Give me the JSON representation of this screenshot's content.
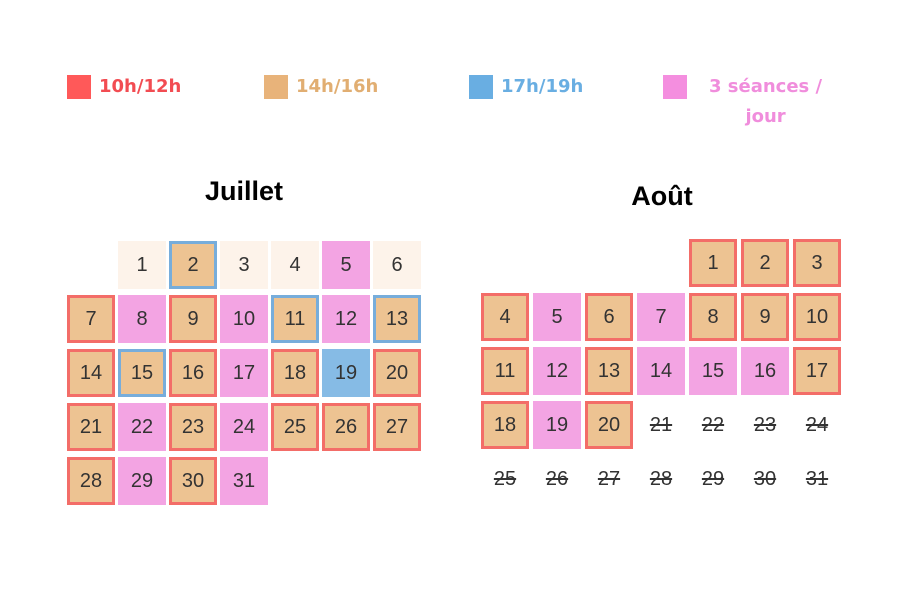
{
  "colors": {
    "red": "#FF5959",
    "tan": "#E8B37A",
    "blue": "#69AEE2",
    "pink": "#F48EDF",
    "cream": "#FDF3EA",
    "cell_tan": "#EDC392",
    "cell_pink": "#F3A4E3",
    "cell_blue": "#86BBE5",
    "border_red": "#F36D68",
    "border_blue": "#77ADDB"
  },
  "legend": [
    {
      "label": "10h/12h",
      "color": "#FF5959",
      "text_color": "#F24C52"
    },
    {
      "label": "14h/16h",
      "color": "#E8B37A",
      "text_color": "#E1AE72"
    },
    {
      "label": "17h/19h",
      "color": "#69AEE2",
      "text_color": "#69AEE2"
    },
    {
      "label": "3 séances /",
      "label2": "jour",
      "color": "#F48EDF",
      "text_color": "#F08DDC"
    }
  ],
  "months": [
    {
      "title": "Juillet",
      "days": [
        {
          "d": "1",
          "fill": "cream",
          "border": "none"
        },
        {
          "d": "2",
          "fill": "tan",
          "border": "blue"
        },
        {
          "d": "3",
          "fill": "cream",
          "border": "none"
        },
        {
          "d": "4",
          "fill": "cream",
          "border": "none"
        },
        {
          "d": "5",
          "fill": "pink",
          "border": "none"
        },
        {
          "d": "6",
          "fill": "cream",
          "border": "none"
        },
        {
          "d": "7",
          "fill": "tan",
          "border": "red"
        },
        {
          "d": "8",
          "fill": "pink",
          "border": "none"
        },
        {
          "d": "9",
          "fill": "tan",
          "border": "red"
        },
        {
          "d": "10",
          "fill": "pink",
          "border": "none"
        },
        {
          "d": "11",
          "fill": "tan",
          "border": "blue"
        },
        {
          "d": "12",
          "fill": "pink",
          "border": "none"
        },
        {
          "d": "13",
          "fill": "tan",
          "border": "blue"
        },
        {
          "d": "14",
          "fill": "tan",
          "border": "red"
        },
        {
          "d": "15",
          "fill": "tan",
          "border": "blue"
        },
        {
          "d": "16",
          "fill": "tan",
          "border": "red"
        },
        {
          "d": "17",
          "fill": "pink",
          "border": "none"
        },
        {
          "d": "18",
          "fill": "tan",
          "border": "red"
        },
        {
          "d": "19",
          "fill": "blue",
          "border": "none"
        },
        {
          "d": "20",
          "fill": "tan",
          "border": "red"
        },
        {
          "d": "21",
          "fill": "tan",
          "border": "red"
        },
        {
          "d": "22",
          "fill": "pink",
          "border": "none"
        },
        {
          "d": "23",
          "fill": "tan",
          "border": "red"
        },
        {
          "d": "24",
          "fill": "pink",
          "border": "none"
        },
        {
          "d": "25",
          "fill": "tan",
          "border": "red"
        },
        {
          "d": "26",
          "fill": "tan",
          "border": "red"
        },
        {
          "d": "27",
          "fill": "tan",
          "border": "red"
        },
        {
          "d": "28",
          "fill": "tan",
          "border": "red"
        },
        {
          "d": "29",
          "fill": "pink",
          "border": "none"
        },
        {
          "d": "30",
          "fill": "tan",
          "border": "red"
        },
        {
          "d": "31",
          "fill": "pink",
          "border": "none"
        }
      ]
    },
    {
      "title": "Août",
      "days": [
        {
          "d": "1",
          "fill": "tan",
          "border": "red"
        },
        {
          "d": "2",
          "fill": "tan",
          "border": "red"
        },
        {
          "d": "3",
          "fill": "tan",
          "border": "red"
        },
        {
          "d": "4",
          "fill": "tan",
          "border": "red"
        },
        {
          "d": "5",
          "fill": "pink",
          "border": "none"
        },
        {
          "d": "6",
          "fill": "tan",
          "border": "red"
        },
        {
          "d": "7",
          "fill": "pink",
          "border": "none"
        },
        {
          "d": "8",
          "fill": "tan",
          "border": "red"
        },
        {
          "d": "9",
          "fill": "tan",
          "border": "red"
        },
        {
          "d": "10",
          "fill": "tan",
          "border": "red"
        },
        {
          "d": "11",
          "fill": "tan",
          "border": "red"
        },
        {
          "d": "12",
          "fill": "pink",
          "border": "none"
        },
        {
          "d": "13",
          "fill": "tan",
          "border": "red"
        },
        {
          "d": "14",
          "fill": "pink",
          "border": "none"
        },
        {
          "d": "15",
          "fill": "pink",
          "border": "none"
        },
        {
          "d": "16",
          "fill": "pink",
          "border": "none"
        },
        {
          "d": "17",
          "fill": "tan",
          "border": "red"
        },
        {
          "d": "18",
          "fill": "tan",
          "border": "red"
        },
        {
          "d": "19",
          "fill": "pink",
          "border": "none"
        },
        {
          "d": "20",
          "fill": "tan",
          "border": "red"
        },
        {
          "d": "21",
          "fill": "none",
          "border": "none",
          "struck": true
        },
        {
          "d": "22",
          "fill": "none",
          "border": "none",
          "struck": true
        },
        {
          "d": "23",
          "fill": "none",
          "border": "none",
          "struck": true
        },
        {
          "d": "24",
          "fill": "none",
          "border": "none",
          "struck": true
        },
        {
          "d": "25",
          "fill": "none",
          "border": "none",
          "struck": true
        },
        {
          "d": "26",
          "fill": "none",
          "border": "none",
          "struck": true
        },
        {
          "d": "27",
          "fill": "none",
          "border": "none",
          "struck": true
        },
        {
          "d": "28",
          "fill": "none",
          "border": "none",
          "struck": true
        },
        {
          "d": "29",
          "fill": "none",
          "border": "none",
          "struck": true
        },
        {
          "d": "30",
          "fill": "none",
          "border": "none",
          "struck": true
        },
        {
          "d": "31",
          "fill": "none",
          "border": "none",
          "struck": true
        }
      ]
    }
  ]
}
